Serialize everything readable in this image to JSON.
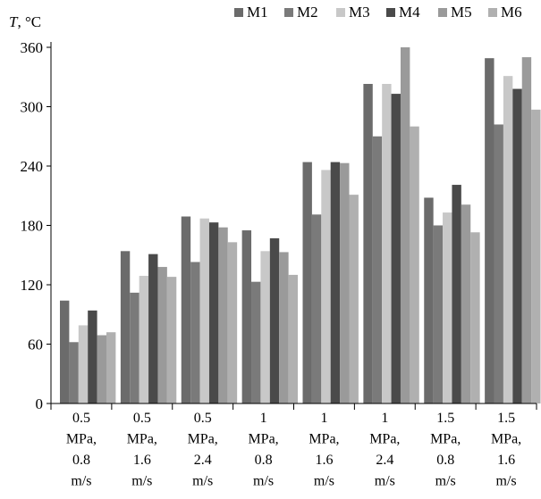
{
  "chart_data": {
    "type": "bar",
    "ylabel_symbol": "T",
    "ylabel_unit": ", °C",
    "ylim": [
      0,
      360
    ],
    "yticks": [
      0,
      60,
      120,
      180,
      240,
      300,
      360
    ],
    "grid": false,
    "legend_position": "top-right",
    "categories": [
      [
        "0.5",
        "MPa,",
        "0.8",
        "m/s"
      ],
      [
        "0.5",
        "MPa,",
        "1.6",
        "m/s"
      ],
      [
        "0.5",
        "MPa,",
        "2.4",
        "m/s"
      ],
      [
        "1",
        "MPa,",
        "0.8",
        "m/s"
      ],
      [
        "1",
        "MPa,",
        "1.6",
        "m/s"
      ],
      [
        "1",
        "MPa,",
        "2.4",
        "m/s"
      ],
      [
        "1.5",
        "MPa,",
        "0.8",
        "m/s"
      ],
      [
        "1.5",
        "MPa,",
        "1.6",
        "m/s"
      ]
    ],
    "series": [
      {
        "name": "M1",
        "color": "#6b6b6b",
        "values": [
          104,
          154,
          189,
          175,
          244,
          323,
          208,
          349
        ]
      },
      {
        "name": "M2",
        "color": "#7a7a7a",
        "values": [
          62,
          112,
          143,
          123,
          191,
          270,
          180,
          282
        ]
      },
      {
        "name": "M3",
        "color": "#c8c8c8",
        "values": [
          79,
          129,
          187,
          154,
          236,
          323,
          193,
          331
        ]
      },
      {
        "name": "M4",
        "color": "#4a4a4a",
        "values": [
          94,
          151,
          183,
          167,
          244,
          313,
          221,
          318
        ]
      },
      {
        "name": "M5",
        "color": "#9a9a9a",
        "values": [
          69,
          138,
          178,
          153,
          243,
          360,
          201,
          350
        ]
      },
      {
        "name": "M6",
        "color": "#b0b0b0",
        "values": [
          72,
          128,
          163,
          130,
          211,
          280,
          173,
          297
        ]
      }
    ]
  }
}
